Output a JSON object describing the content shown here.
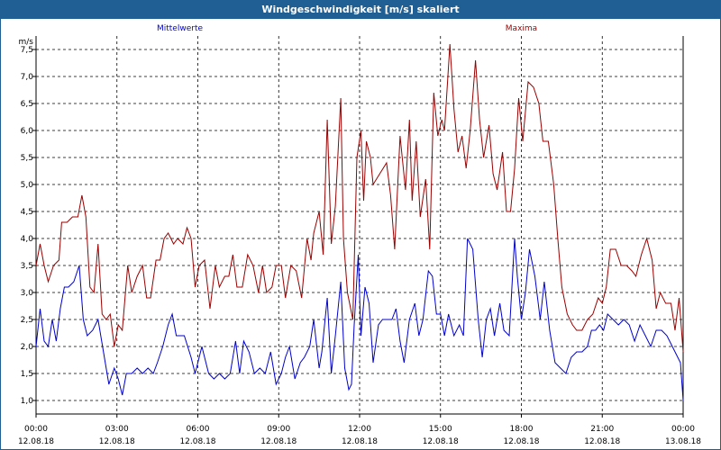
{
  "window": {
    "title": "Windgeschwindigkeit [m/s] skaliert"
  },
  "chart_data": {
    "type": "line",
    "title": "Windgeschwindigkeit [m/s] skaliert",
    "ylabel": "m/s",
    "xlabel": "",
    "ylim": [
      0.75,
      7.75
    ],
    "xlim": [
      0,
      24
    ],
    "grid": true,
    "legend_placement": "top",
    "y_ticks": [
      "1,0",
      "1,5",
      "2,0",
      "2,5",
      "3,0",
      "3,5",
      "4,0",
      "4,5",
      "5,0",
      "5,5",
      "6,0",
      "6,5",
      "7,0",
      "7,5"
    ],
    "x_ticks": [
      {
        "time": "00:00",
        "date": "12.08.18"
      },
      {
        "time": "03:00",
        "date": "12.08.18"
      },
      {
        "time": "06:00",
        "date": "12.08.18"
      },
      {
        "time": "09:00",
        "date": "12.08.18"
      },
      {
        "time": "12:00",
        "date": "12.08.18"
      },
      {
        "time": "15:00",
        "date": "12.08.18"
      },
      {
        "time": "18:00",
        "date": "12.08.18"
      },
      {
        "time": "21:00",
        "date": "12.08.18"
      },
      {
        "time": "00:00",
        "date": "13.08.18"
      }
    ],
    "series": [
      {
        "name": "Mittelwerte",
        "color": "#0000cc",
        "points": [
          [
            0,
            2.0
          ],
          [
            0.15,
            2.7
          ],
          [
            0.3,
            2.1
          ],
          [
            0.45,
            2.0
          ],
          [
            0.6,
            2.5
          ],
          [
            0.75,
            2.1
          ],
          [
            0.9,
            2.7
          ],
          [
            1.05,
            3.1
          ],
          [
            1.2,
            3.1
          ],
          [
            1.4,
            3.2
          ],
          [
            1.6,
            3.5
          ],
          [
            1.75,
            2.5
          ],
          [
            1.9,
            2.2
          ],
          [
            2.1,
            2.3
          ],
          [
            2.3,
            2.5
          ],
          [
            2.5,
            1.9
          ],
          [
            2.7,
            1.3
          ],
          [
            2.9,
            1.6
          ],
          [
            3.05,
            1.4
          ],
          [
            3.2,
            1.1
          ],
          [
            3.35,
            1.5
          ],
          [
            3.55,
            1.5
          ],
          [
            3.75,
            1.6
          ],
          [
            3.95,
            1.5
          ],
          [
            4.15,
            1.6
          ],
          [
            4.35,
            1.5
          ],
          [
            4.5,
            1.7
          ],
          [
            4.7,
            2.0
          ],
          [
            4.9,
            2.4
          ],
          [
            5.05,
            2.6
          ],
          [
            5.2,
            2.2
          ],
          [
            5.5,
            2.2
          ],
          [
            5.75,
            1.8
          ],
          [
            5.9,
            1.5
          ],
          [
            6.15,
            2.0
          ],
          [
            6.4,
            1.5
          ],
          [
            6.6,
            1.4
          ],
          [
            6.8,
            1.5
          ],
          [
            7.0,
            1.4
          ],
          [
            7.2,
            1.5
          ],
          [
            7.4,
            2.1
          ],
          [
            7.55,
            1.5
          ],
          [
            7.7,
            2.1
          ],
          [
            7.9,
            1.9
          ],
          [
            8.1,
            1.5
          ],
          [
            8.3,
            1.6
          ],
          [
            8.5,
            1.5
          ],
          [
            8.7,
            1.9
          ],
          [
            8.9,
            1.3
          ],
          [
            9.1,
            1.5
          ],
          [
            9.25,
            1.8
          ],
          [
            9.4,
            2.0
          ],
          [
            9.6,
            1.4
          ],
          [
            9.8,
            1.7
          ],
          [
            9.95,
            1.8
          ],
          [
            10.15,
            2.0
          ],
          [
            10.3,
            2.5
          ],
          [
            10.5,
            1.6
          ],
          [
            10.6,
            1.9
          ],
          [
            10.8,
            2.9
          ],
          [
            10.95,
            1.5
          ],
          [
            11.1,
            2.2
          ],
          [
            11.3,
            3.2
          ],
          [
            11.45,
            1.6
          ],
          [
            11.6,
            1.2
          ],
          [
            11.7,
            1.3
          ],
          [
            11.8,
            2.4
          ],
          [
            11.95,
            3.7
          ],
          [
            12.05,
            2.2
          ],
          [
            12.2,
            3.1
          ],
          [
            12.35,
            2.8
          ],
          [
            12.5,
            1.7
          ],
          [
            12.7,
            2.4
          ],
          [
            12.85,
            2.5
          ],
          [
            13.05,
            2.5
          ],
          [
            13.2,
            2.5
          ],
          [
            13.35,
            2.7
          ],
          [
            13.5,
            2.1
          ],
          [
            13.65,
            1.7
          ],
          [
            13.85,
            2.5
          ],
          [
            14.05,
            2.8
          ],
          [
            14.2,
            2.2
          ],
          [
            14.35,
            2.5
          ],
          [
            14.55,
            3.4
          ],
          [
            14.7,
            3.3
          ],
          [
            14.85,
            2.6
          ],
          [
            15.0,
            2.6
          ],
          [
            15.15,
            2.2
          ],
          [
            15.3,
            2.6
          ],
          [
            15.5,
            2.2
          ],
          [
            15.7,
            2.4
          ],
          [
            15.85,
            2.2
          ],
          [
            16.0,
            4.0
          ],
          [
            16.2,
            3.8
          ],
          [
            16.4,
            2.5
          ],
          [
            16.55,
            1.8
          ],
          [
            16.7,
            2.5
          ],
          [
            16.85,
            2.7
          ],
          [
            17.0,
            2.2
          ],
          [
            17.2,
            2.8
          ],
          [
            17.35,
            2.3
          ],
          [
            17.55,
            2.2
          ],
          [
            17.75,
            4.0
          ],
          [
            17.85,
            3.3
          ],
          [
            18.0,
            2.5
          ],
          [
            18.15,
            3.0
          ],
          [
            18.3,
            3.8
          ],
          [
            18.5,
            3.3
          ],
          [
            18.7,
            2.5
          ],
          [
            18.85,
            3.2
          ],
          [
            19.05,
            2.3
          ],
          [
            19.25,
            1.7
          ],
          [
            19.45,
            1.6
          ],
          [
            19.65,
            1.5
          ],
          [
            19.85,
            1.8
          ],
          [
            20.05,
            1.9
          ],
          [
            20.25,
            1.9
          ],
          [
            20.45,
            2.0
          ],
          [
            20.6,
            2.3
          ],
          [
            20.75,
            2.3
          ],
          [
            20.9,
            2.4
          ],
          [
            21.05,
            2.3
          ],
          [
            21.2,
            2.6
          ],
          [
            21.4,
            2.5
          ],
          [
            21.6,
            2.4
          ],
          [
            21.8,
            2.5
          ],
          [
            22.0,
            2.4
          ],
          [
            22.2,
            2.1
          ],
          [
            22.4,
            2.4
          ],
          [
            22.6,
            2.2
          ],
          [
            22.8,
            2.0
          ],
          [
            23.0,
            2.3
          ],
          [
            23.2,
            2.3
          ],
          [
            23.4,
            2.2
          ],
          [
            23.6,
            2.0
          ],
          [
            23.8,
            1.8
          ],
          [
            23.9,
            1.7
          ],
          [
            24.0,
            1.0
          ]
        ]
      },
      {
        "name": "Maxima",
        "color": "#990000",
        "points": [
          [
            0,
            3.5
          ],
          [
            0.15,
            3.9
          ],
          [
            0.3,
            3.5
          ],
          [
            0.45,
            3.2
          ],
          [
            0.65,
            3.5
          ],
          [
            0.85,
            3.6
          ],
          [
            0.95,
            4.3
          ],
          [
            1.15,
            4.3
          ],
          [
            1.35,
            4.4
          ],
          [
            1.55,
            4.4
          ],
          [
            1.7,
            4.8
          ],
          [
            1.85,
            4.4
          ],
          [
            2.0,
            3.1
          ],
          [
            2.15,
            3.0
          ],
          [
            2.3,
            3.9
          ],
          [
            2.45,
            2.6
          ],
          [
            2.6,
            2.5
          ],
          [
            2.75,
            2.6
          ],
          [
            2.9,
            2.0
          ],
          [
            3.05,
            2.4
          ],
          [
            3.2,
            2.3
          ],
          [
            3.4,
            3.5
          ],
          [
            3.55,
            3.0
          ],
          [
            3.75,
            3.3
          ],
          [
            3.95,
            3.5
          ],
          [
            4.1,
            2.9
          ],
          [
            4.25,
            2.9
          ],
          [
            4.45,
            3.6
          ],
          [
            4.6,
            3.6
          ],
          [
            4.75,
            4.0
          ],
          [
            4.9,
            4.1
          ],
          [
            5.1,
            3.9
          ],
          [
            5.25,
            4.0
          ],
          [
            5.45,
            3.9
          ],
          [
            5.6,
            4.2
          ],
          [
            5.75,
            4.0
          ],
          [
            5.9,
            3.1
          ],
          [
            6.05,
            3.5
          ],
          [
            6.25,
            3.6
          ],
          [
            6.45,
            2.7
          ],
          [
            6.65,
            3.5
          ],
          [
            6.8,
            3.1
          ],
          [
            7.0,
            3.3
          ],
          [
            7.15,
            3.3
          ],
          [
            7.3,
            3.7
          ],
          [
            7.45,
            3.1
          ],
          [
            7.65,
            3.1
          ],
          [
            7.85,
            3.7
          ],
          [
            8.05,
            3.5
          ],
          [
            8.25,
            3.0
          ],
          [
            8.4,
            3.5
          ],
          [
            8.55,
            3.0
          ],
          [
            8.75,
            3.1
          ],
          [
            8.9,
            3.5
          ],
          [
            9.1,
            3.5
          ],
          [
            9.25,
            2.9
          ],
          [
            9.45,
            3.5
          ],
          [
            9.65,
            3.4
          ],
          [
            9.85,
            2.9
          ],
          [
            10.05,
            4.0
          ],
          [
            10.2,
            3.6
          ],
          [
            10.3,
            4.1
          ],
          [
            10.5,
            4.5
          ],
          [
            10.65,
            3.7
          ],
          [
            10.8,
            6.2
          ],
          [
            10.95,
            3.9
          ],
          [
            11.1,
            4.6
          ],
          [
            11.3,
            6.6
          ],
          [
            11.4,
            4.0
          ],
          [
            11.55,
            3.0
          ],
          [
            11.75,
            2.5
          ],
          [
            11.9,
            5.5
          ],
          [
            12.05,
            6.0
          ],
          [
            12.15,
            4.7
          ],
          [
            12.25,
            5.8
          ],
          [
            12.4,
            5.5
          ],
          [
            12.5,
            5.0
          ],
          [
            12.75,
            5.2
          ],
          [
            13.0,
            5.4
          ],
          [
            13.15,
            4.8
          ],
          [
            13.3,
            3.8
          ],
          [
            13.5,
            5.9
          ],
          [
            13.7,
            4.9
          ],
          [
            13.85,
            6.2
          ],
          [
            13.95,
            4.7
          ],
          [
            14.1,
            5.8
          ],
          [
            14.25,
            4.4
          ],
          [
            14.45,
            5.1
          ],
          [
            14.6,
            3.8
          ],
          [
            14.75,
            6.7
          ],
          [
            14.9,
            5.9
          ],
          [
            15.05,
            6.2
          ],
          [
            15.15,
            6.0
          ],
          [
            15.35,
            7.6
          ],
          [
            15.5,
            6.4
          ],
          [
            15.65,
            5.6
          ],
          [
            15.8,
            5.9
          ],
          [
            15.95,
            5.3
          ],
          [
            16.1,
            6.0
          ],
          [
            16.3,
            7.3
          ],
          [
            16.45,
            6.2
          ],
          [
            16.6,
            5.5
          ],
          [
            16.8,
            6.1
          ],
          [
            16.95,
            5.2
          ],
          [
            17.1,
            4.9
          ],
          [
            17.3,
            5.6
          ],
          [
            17.45,
            4.5
          ],
          [
            17.6,
            4.5
          ],
          [
            17.75,
            5.3
          ],
          [
            17.9,
            6.6
          ],
          [
            18.05,
            5.8
          ],
          [
            18.25,
            6.9
          ],
          [
            18.45,
            6.8
          ],
          [
            18.65,
            6.5
          ],
          [
            18.8,
            5.8
          ],
          [
            19.0,
            5.8
          ],
          [
            19.2,
            5.0
          ],
          [
            19.35,
            4.0
          ],
          [
            19.5,
            3.1
          ],
          [
            19.7,
            2.6
          ],
          [
            19.9,
            2.4
          ],
          [
            20.05,
            2.3
          ],
          [
            20.25,
            2.3
          ],
          [
            20.45,
            2.5
          ],
          [
            20.65,
            2.6
          ],
          [
            20.85,
            2.9
          ],
          [
            21.0,
            2.8
          ],
          [
            21.15,
            3.1
          ],
          [
            21.3,
            3.8
          ],
          [
            21.5,
            3.8
          ],
          [
            21.7,
            3.5
          ],
          [
            21.9,
            3.5
          ],
          [
            22.1,
            3.4
          ],
          [
            22.25,
            3.3
          ],
          [
            22.45,
            3.7
          ],
          [
            22.65,
            4.0
          ],
          [
            22.85,
            3.6
          ],
          [
            23.0,
            2.7
          ],
          [
            23.15,
            3.0
          ],
          [
            23.35,
            2.8
          ],
          [
            23.55,
            2.8
          ],
          [
            23.7,
            2.3
          ],
          [
            23.85,
            2.9
          ],
          [
            24.0,
            1.9
          ]
        ]
      }
    ]
  }
}
